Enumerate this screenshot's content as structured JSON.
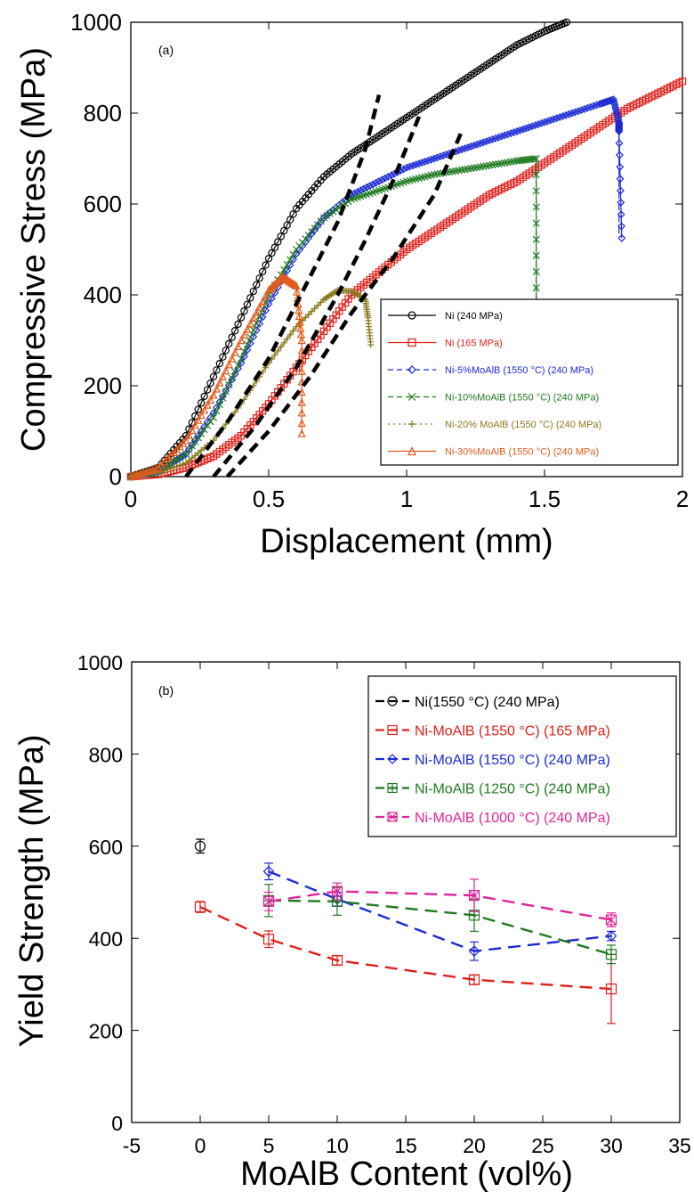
{
  "chart_data": [
    {
      "panel": "(a)",
      "type": "line",
      "xlabel": "Displacement (mm)",
      "ylabel": "Compressive Stress (MPa)",
      "xlim": [
        0,
        2
      ],
      "ylim": [
        0,
        1000
      ],
      "xticks": [
        "0",
        "0.5",
        "1",
        "1.5",
        "2"
      ],
      "yticks": [
        "0",
        "200",
        "400",
        "600",
        "800",
        "1000"
      ],
      "grid": false,
      "legend_position": "bottom-right",
      "series": [
        {
          "name": "Ni (240 MPa)",
          "color": "#000000",
          "marker": "circle",
          "x": [
            0,
            0.1,
            0.2,
            0.3,
            0.4,
            0.5,
            0.6,
            0.7,
            0.8,
            0.9,
            1.0,
            1.1,
            1.2,
            1.3,
            1.4,
            1.5,
            1.58
          ],
          "y": [
            0,
            20,
            90,
            220,
            350,
            480,
            590,
            660,
            710,
            750,
            790,
            830,
            870,
            910,
            950,
            980,
            1000
          ]
        },
        {
          "name": "Ni (165 MPa)",
          "color": "#e0201a",
          "marker": "square",
          "x": [
            0,
            0.1,
            0.2,
            0.3,
            0.4,
            0.5,
            0.6,
            0.7,
            0.8,
            0.9,
            1.0,
            1.1,
            1.2,
            1.3,
            1.4,
            1.5,
            1.6,
            1.7,
            1.8,
            1.9,
            2.0
          ],
          "y": [
            0,
            5,
            20,
            45,
            90,
            160,
            240,
            320,
            400,
            450,
            500,
            540,
            580,
            620,
            650,
            690,
            730,
            770,
            810,
            840,
            870
          ]
        },
        {
          "name": "Ni-5%MoAlB (1550 °C) (240 MPa)",
          "color": "#1c2ad6",
          "marker": "diamond",
          "x": [
            0,
            0.1,
            0.2,
            0.3,
            0.4,
            0.5,
            0.6,
            0.7,
            0.8,
            0.9,
            1.0,
            1.1,
            1.2,
            1.3,
            1.4,
            1.5,
            1.6,
            1.7,
            1.75,
            1.77,
            1.77,
            1.78
          ],
          "y": [
            0,
            10,
            50,
            140,
            250,
            380,
            490,
            570,
            620,
            650,
            680,
            700,
            720,
            740,
            760,
            780,
            800,
            820,
            830,
            780,
            760,
            525
          ]
        },
        {
          "name": "Ni-10%MoAlB (1550 °C) (240 MPa)",
          "color": "#1f7a1f",
          "marker": "x",
          "x": [
            0,
            0.1,
            0.2,
            0.3,
            0.4,
            0.5,
            0.6,
            0.7,
            0.8,
            0.9,
            1.0,
            1.1,
            1.2,
            1.3,
            1.4,
            1.47,
            1.47
          ],
          "y": [
            0,
            12,
            50,
            130,
            260,
            400,
            500,
            570,
            610,
            630,
            650,
            665,
            675,
            685,
            695,
            700,
            380
          ]
        },
        {
          "name": "Ni-20% MoAlB (1550 °C) (240 MPa)",
          "color": "#8a7a1a",
          "marker": "plus",
          "x": [
            0,
            0.1,
            0.2,
            0.3,
            0.4,
            0.5,
            0.6,
            0.7,
            0.75,
            0.8,
            0.85,
            0.86,
            0.87
          ],
          "y": [
            0,
            8,
            30,
            80,
            160,
            250,
            330,
            390,
            410,
            408,
            390,
            350,
            290
          ]
        },
        {
          "name": "Ni-30%MoAlB (1550 °C) (240 MPa)",
          "color": "#e25a1c",
          "marker": "triangle",
          "x": [
            0,
            0.1,
            0.2,
            0.3,
            0.4,
            0.5,
            0.55,
            0.6,
            0.62,
            0.62
          ],
          "y": [
            0,
            20,
            80,
            180,
            300,
            410,
            440,
            420,
            300,
            95
          ]
        },
        {
          "name": "",
          "color": "#000000",
          "marker": "none",
          "style": "dashed-thick",
          "x": [
            0.2,
            0.35,
            0.5,
            0.65,
            0.75,
            0.85,
            0.9
          ],
          "y": [
            0,
            120,
            260,
            440,
            560,
            720,
            840
          ]
        },
        {
          "name": "",
          "color": "#000000",
          "marker": "none",
          "style": "dashed-thick",
          "x": [
            0.3,
            0.45,
            0.6,
            0.75,
            0.85,
            0.95,
            1.05
          ],
          "y": [
            0,
            110,
            240,
            400,
            520,
            650,
            800
          ]
        },
        {
          "name": "",
          "color": "#000000",
          "marker": "none",
          "style": "dashed-thick",
          "x": [
            0.35,
            0.5,
            0.65,
            0.8,
            0.95,
            1.1,
            1.2
          ],
          "y": [
            0,
            100,
            220,
            360,
            480,
            620,
            760
          ]
        }
      ]
    },
    {
      "panel": "(b)",
      "type": "line",
      "xlabel": "MoAlB Content (vol%)",
      "ylabel": "Yield Strength (MPa)",
      "xlim": [
        -5,
        35
      ],
      "ylim": [
        0,
        1000
      ],
      "xticks": [
        "-5",
        "0",
        "5",
        "10",
        "15",
        "20",
        "25",
        "30",
        "35"
      ],
      "yticks": [
        "0",
        "200",
        "400",
        "600",
        "800",
        "1000"
      ],
      "grid": false,
      "legend_position": "top-right",
      "series": [
        {
          "name": "Ni(1550 °C) (240 MPa)",
          "color": "#000000",
          "marker": "circle",
          "x": [
            0
          ],
          "y": [
            600
          ],
          "err": [
            15
          ]
        },
        {
          "name": "Ni-MoAlB (1550 °C) (165 MPa)",
          "color": "#e0201a",
          "marker": "square",
          "x": [
            0,
            5,
            10,
            20,
            30
          ],
          "y": [
            468,
            398,
            352,
            310,
            290
          ],
          "err": [
            12,
            18,
            10,
            10,
            75
          ]
        },
        {
          "name": "Ni-MoAlB (1550 °C) (240 MPa)",
          "color": "#1c2ad6",
          "marker": "diamond",
          "x": [
            5,
            10,
            20,
            30
          ],
          "y": [
            545,
            485,
            372,
            405
          ],
          "err": [
            18,
            15,
            20,
            10
          ]
        },
        {
          "name": "Ni-MoAlB (1250 °C) (240 MPa)",
          "color": "#1f7a1f",
          "marker": "squareplus",
          "x": [
            5,
            10,
            20,
            30
          ],
          "y": [
            482,
            480,
            450,
            365
          ],
          "err": [
            35,
            30,
            35,
            20
          ]
        },
        {
          "name": "Ni-MoAlB (1000 °C) (240 MPa)",
          "color": "#e0249a",
          "marker": "squarex",
          "x": [
            5,
            10,
            20,
            30
          ],
          "y": [
            480,
            502,
            493,
            440
          ],
          "err": [
            20,
            18,
            35,
            15
          ]
        }
      ]
    }
  ]
}
